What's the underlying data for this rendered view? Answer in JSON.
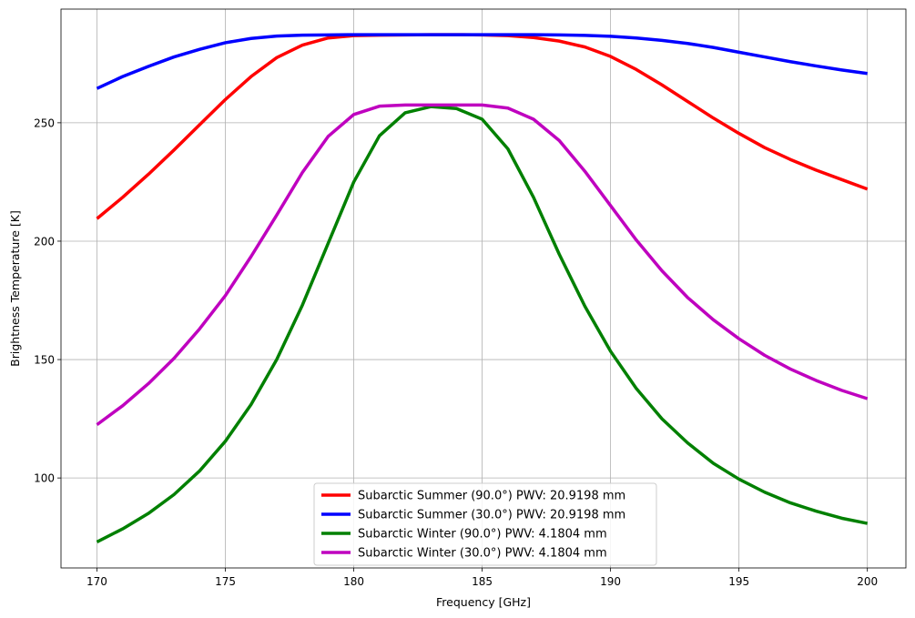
{
  "chart_data": {
    "type": "line",
    "title": "",
    "xlabel": "Frequency [GHz]",
    "ylabel": "Brightness Temperature [K]",
    "xlim": [
      168.6,
      201.5
    ],
    "ylim": [
      62,
      298
    ],
    "xticks": [
      170,
      175,
      180,
      185,
      190,
      195,
      200
    ],
    "yticks": [
      100,
      150,
      200,
      250
    ],
    "grid": true,
    "legend_position": "lower-center",
    "x": [
      170,
      171,
      172,
      173,
      174,
      175,
      176,
      177,
      178,
      179,
      180,
      181,
      182,
      183,
      184,
      185,
      186,
      187,
      188,
      189,
      190,
      191,
      192,
      193,
      194,
      195,
      196,
      197,
      198,
      199,
      200
    ],
    "series": [
      {
        "name": "Subarctic Summer (90.0°) PWV: 20.9198 mm",
        "color": "#ff0000",
        "values": [
          209.5,
          218.5,
          228.2,
          238.5,
          249.2,
          259.8,
          269.5,
          277.5,
          282.8,
          285.8,
          286.8,
          287.0,
          287.1,
          287.2,
          287.2,
          287.1,
          286.8,
          286.0,
          284.5,
          282.0,
          278.0,
          272.5,
          266.0,
          259.0,
          252.0,
          245.5,
          239.5,
          234.5,
          230.0,
          226.0,
          222.0
        ]
      },
      {
        "name": "Subarctic Summer (30.0°) PWV: 20.9198 mm",
        "color": "#0000ff",
        "values": [
          264.5,
          269.5,
          273.8,
          277.8,
          281.0,
          283.8,
          285.6,
          286.6,
          287.0,
          287.1,
          287.2,
          287.2,
          287.2,
          287.2,
          287.2,
          287.2,
          287.2,
          287.2,
          287.1,
          286.9,
          286.5,
          285.8,
          284.8,
          283.5,
          281.8,
          279.8,
          277.8,
          275.8,
          274.0,
          272.3,
          270.8
        ]
      },
      {
        "name": "Subarctic Winter (90.0°) PWV: 4.1804 mm",
        "color": "#008000",
        "values": [
          73.0,
          78.5,
          85.0,
          93.0,
          103.0,
          115.5,
          131.0,
          150.0,
          173.0,
          199.0,
          225.0,
          244.5,
          254.2,
          256.8,
          256.0,
          251.5,
          239.0,
          218.5,
          194.5,
          172.5,
          153.5,
          137.8,
          125.0,
          114.8,
          106.2,
          99.5,
          94.0,
          89.5,
          86.0,
          83.0,
          80.8
        ]
      },
      {
        "name": "Subarctic Winter (30.0°) PWV: 4.1804 mm",
        "color": "#bf00bf",
        "values": [
          122.5,
          130.5,
          139.8,
          150.5,
          163.0,
          177.0,
          193.5,
          211.0,
          229.0,
          244.2,
          253.5,
          257.0,
          257.5,
          257.5,
          257.5,
          257.5,
          256.2,
          251.5,
          242.5,
          229.5,
          215.0,
          200.5,
          187.5,
          176.2,
          166.8,
          158.8,
          151.8,
          146.0,
          141.2,
          137.0,
          133.5
        ]
      }
    ]
  }
}
